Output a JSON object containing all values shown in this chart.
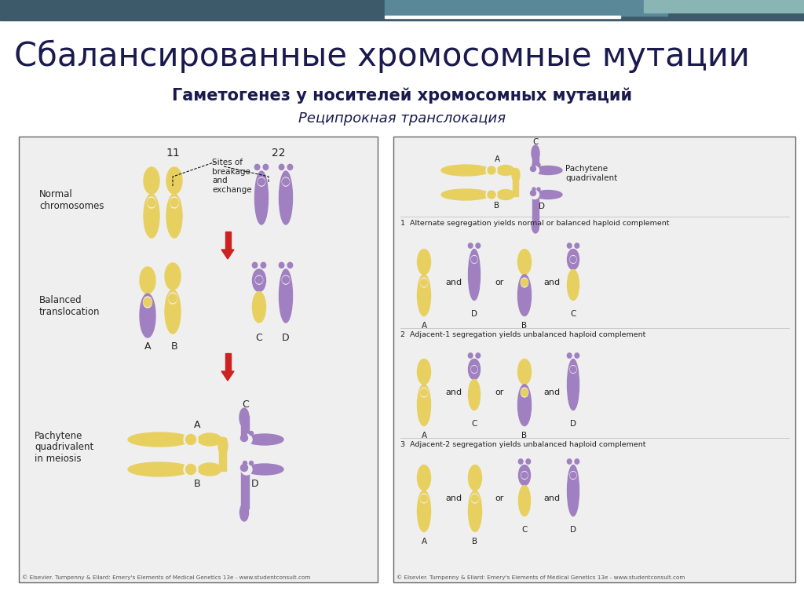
{
  "title": "Сбалансированные хромосомные мутации",
  "subtitle": "Гаметогенез у носителей хромосомных мутаций",
  "subtitle2": "Реципрокная транслокация",
  "bg_color": "#ffffff",
  "header_color1": "#3d5a6b",
  "header_color2": "#5b8899",
  "header_color3": "#8ab5b5",
  "title_color": "#1a1a4e",
  "panel_bg": "#efefef",
  "panel_border": "#666666",
  "yellow_chr": "#e8d060",
  "yellow_chr_light": "#f0dd80",
  "purple_chr": "#a080c0",
  "purple_chr_dark": "#8860a8",
  "arrow_color": "#cc2222",
  "text_dark": "#222222",
  "footer_text": "© Elsevier. Turnpenny & Ellard: Emery's Elements of Medical Genetics 13e - www.studentconsult.com",
  "sec1_text": "1  Alternate segregation yields normal or balanced haploid complement",
  "sec2_text": "2  Adjacent-1 segregation yields unbalanced haploid complement",
  "sec3_text": "3  Adjacent-2 segregation yields unbalanced haploid complement"
}
